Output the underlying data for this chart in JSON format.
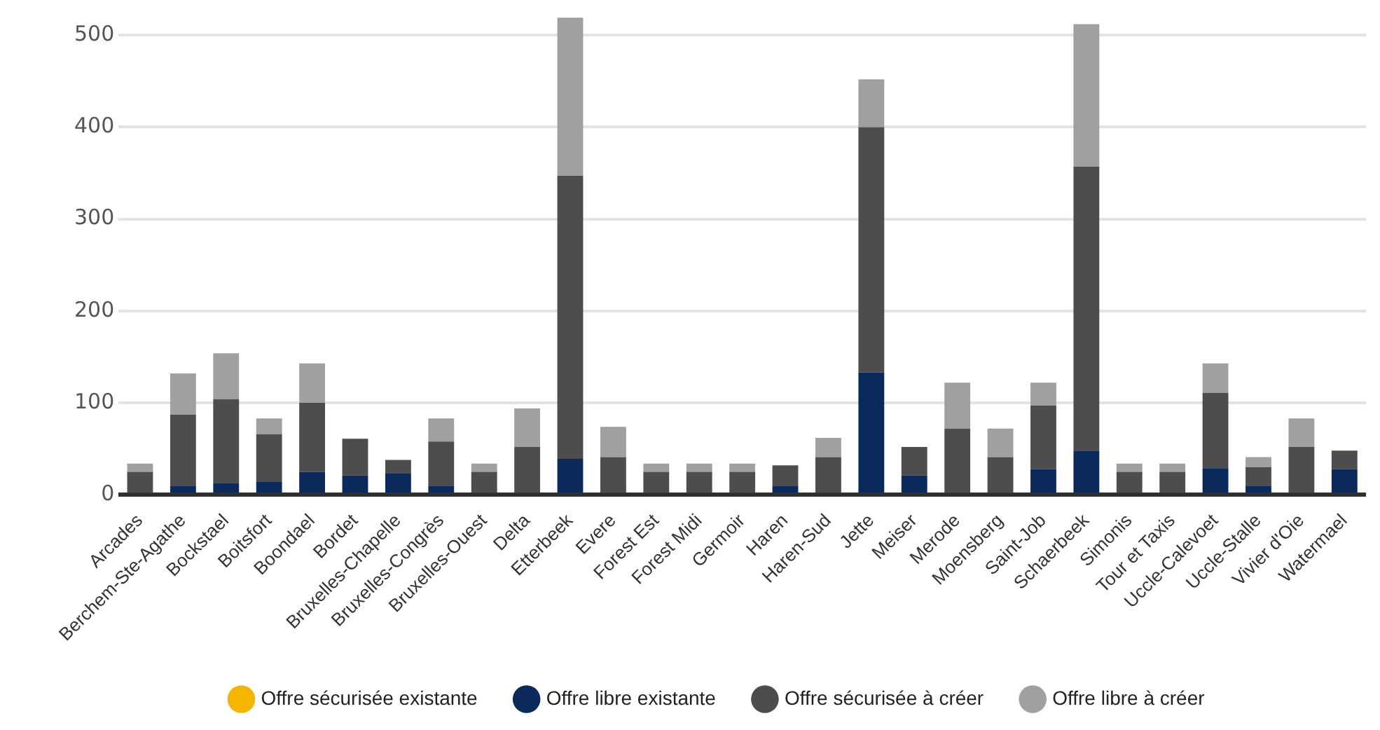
{
  "chart_data": {
    "type": "bar",
    "stacked": true,
    "categories": [
      "Arcades",
      "Berchem-Ste-Agathe",
      "Bockstael",
      "Boitsfort",
      "Boondael",
      "Bordet",
      "Bruxelles-Chapelle",
      "Bruxelles-Congrès",
      "Bruxelles-Ouest",
      "Delta",
      "Etterbeek",
      "Evere",
      "Forest Est",
      "Forest Midi",
      "Germoir",
      "Haren",
      "Haren-Sud",
      "Jette",
      "Meiser",
      "Merode",
      "Moensberg",
      "Saint-Job",
      "Schaerbeek",
      "Simonis",
      "Tour et Taxis",
      "Uccle-Calevoet",
      "Uccle-Stalle",
      "Vivier d'Oie",
      "Watermael"
    ],
    "series": [
      {
        "name": "Offre sécurisée existante",
        "color": "#f5b400",
        "values": [
          0,
          0,
          0,
          0,
          0,
          0,
          0,
          0,
          0,
          0,
          0,
          0,
          0,
          0,
          0,
          0,
          0,
          0,
          0,
          0,
          0,
          0,
          0,
          0,
          0,
          0,
          0,
          0,
          0
        ]
      },
      {
        "name": "Offre libre existante",
        "color": "#0a2a5c",
        "values": [
          0,
          10,
          13,
          14,
          25,
          21,
          23,
          10,
          0,
          0,
          39,
          0,
          0,
          0,
          0,
          10,
          0,
          133,
          21,
          0,
          0,
          28,
          48,
          0,
          0,
          29,
          10,
          0,
          28
        ]
      },
      {
        "name": "Offre sécurisée à créer",
        "color": "#4d4d4d",
        "values": [
          25,
          77,
          91,
          52,
          75,
          40,
          15,
          48,
          25,
          52,
          308,
          41,
          25,
          25,
          25,
          22,
          41,
          267,
          31,
          72,
          41,
          69,
          309,
          25,
          25,
          82,
          20,
          52,
          20
        ]
      },
      {
        "name": "Offre libre à créer",
        "color": "#a0a0a0",
        "values": [
          9,
          45,
          50,
          17,
          43,
          0,
          0,
          25,
          9,
          42,
          172,
          33,
          9,
          9,
          9,
          0,
          21,
          52,
          0,
          50,
          31,
          25,
          155,
          9,
          9,
          32,
          11,
          31,
          0
        ]
      }
    ],
    "ylim": [
      0,
      520
    ],
    "yticks": [
      0,
      100,
      200,
      300,
      400,
      500
    ],
    "grid": "y",
    "legend": "bottom"
  }
}
